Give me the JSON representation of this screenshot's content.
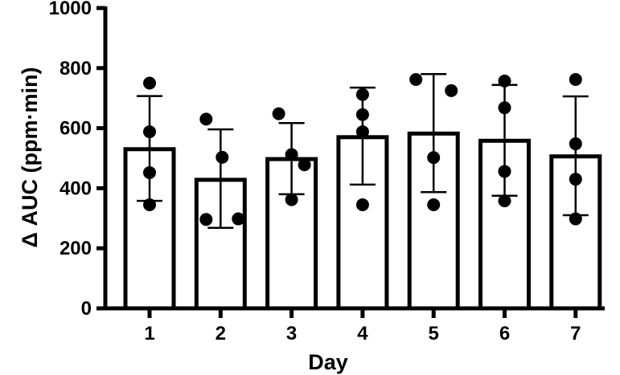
{
  "chart_data": {
    "type": "bar",
    "title": "",
    "xlabel": "Day",
    "ylabel": "Δ AUC (ppm·min)",
    "categories": [
      "1",
      "2",
      "3",
      "4",
      "5",
      "6",
      "7"
    ],
    "values": [
      530,
      428,
      497,
      570,
      582,
      558,
      506
    ],
    "error_high": [
      707,
      596,
      617,
      735,
      780,
      744,
      706
    ],
    "error_low": [
      358,
      268,
      380,
      412,
      387,
      375,
      310
    ],
    "points": [
      [
        750,
        588,
        452,
        345
      ],
      [
        630,
        503,
        296,
        298
      ],
      [
        648,
        512,
        478,
        362
      ],
      [
        712,
        645,
        588,
        345
      ],
      [
        762,
        725,
        502,
        345
      ],
      [
        757,
        668,
        456,
        358
      ],
      [
        762,
        548,
        430,
        298
      ]
    ],
    "ylim": [
      0,
      1000
    ],
    "yticks": [
      0,
      200,
      400,
      600,
      800,
      1000
    ],
    "grid": false,
    "bar_fill": "#ffffff",
    "stroke_color": "#000000"
  }
}
